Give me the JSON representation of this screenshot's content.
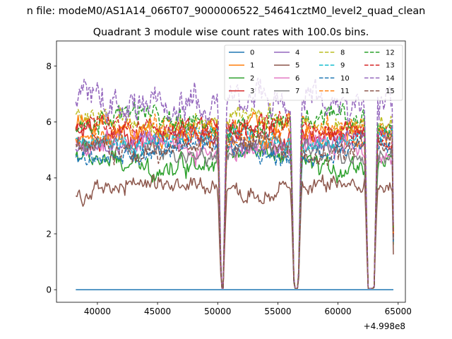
{
  "chart_data": {
    "type": "line",
    "suptitle": "n file: modeM0/AS1A14_066T07_9000006522_54641cztM0_level2_quad_clean",
    "title": "Quadrant 3 module wise count rates with 100.0s bins.",
    "xlabel": "",
    "ylabel": "",
    "x_offset_label": "+4.998e8",
    "xlim": [
      36600,
      65600
    ],
    "ylim": [
      -0.45,
      8.9
    ],
    "x_ticks": [
      40000,
      45000,
      50000,
      55000,
      60000,
      65000
    ],
    "x_tick_labels": [
      "40000",
      "45000",
      "50000",
      "55000",
      "60000",
      "65000"
    ],
    "y_ticks": [
      0,
      2,
      4,
      6,
      8
    ],
    "y_tick_labels": [
      "0",
      "2",
      "4",
      "6",
      "8"
    ],
    "legend_position": "top-right",
    "legend_columns": 4,
    "x_range_data": [
      38200,
      64600
    ],
    "data_gaps": [
      {
        "start": 50300,
        "end": 50450
      },
      {
        "start": 56350,
        "end": 56700
      },
      {
        "start": 62500,
        "end": 63000
      }
    ],
    "series": [
      {
        "name": "0",
        "color": "#1f77b4",
        "style": "solid",
        "level": 0.0,
        "noise": 0.0
      },
      {
        "name": "1",
        "color": "#ff7f0e",
        "style": "solid",
        "level": 5.7,
        "noise": 0.3
      },
      {
        "name": "2",
        "color": "#2ca02c",
        "style": "solid",
        "level": 4.6,
        "noise": 0.3
      },
      {
        "name": "3",
        "color": "#d62728",
        "style": "solid",
        "level": 5.6,
        "noise": 0.3
      },
      {
        "name": "4",
        "color": "#9467bd",
        "style": "solid",
        "level": 5.3,
        "noise": 0.25
      },
      {
        "name": "5",
        "color": "#8c564b",
        "style": "solid",
        "level": 3.6,
        "noise": 0.25
      },
      {
        "name": "6",
        "color": "#e377c2",
        "style": "solid",
        "level": 5.1,
        "noise": 0.3
      },
      {
        "name": "7",
        "color": "#7f7f7f",
        "style": "solid",
        "level": 5.0,
        "noise": 0.25
      },
      {
        "name": "8",
        "color": "#bcbd22",
        "style": "dashed",
        "level": 6.0,
        "noise": 0.3
      },
      {
        "name": "9",
        "color": "#17becf",
        "style": "dashed",
        "level": 5.4,
        "noise": 0.25
      },
      {
        "name": "10",
        "color": "#1f77b4",
        "style": "dashed",
        "level": 4.9,
        "noise": 0.25
      },
      {
        "name": "11",
        "color": "#ff7f0e",
        "style": "dashed",
        "level": 5.6,
        "noise": 0.3
      },
      {
        "name": "12",
        "color": "#2ca02c",
        "style": "dashed",
        "level": 6.0,
        "noise": 0.3
      },
      {
        "name": "13",
        "color": "#d62728",
        "style": "dashed",
        "level": 5.7,
        "noise": 0.3
      },
      {
        "name": "14",
        "color": "#9467bd",
        "style": "dashed",
        "level": 6.7,
        "noise": 0.45
      },
      {
        "name": "15",
        "color": "#8c564b",
        "style": "dashed",
        "level": 5.1,
        "noise": 0.3
      }
    ]
  }
}
